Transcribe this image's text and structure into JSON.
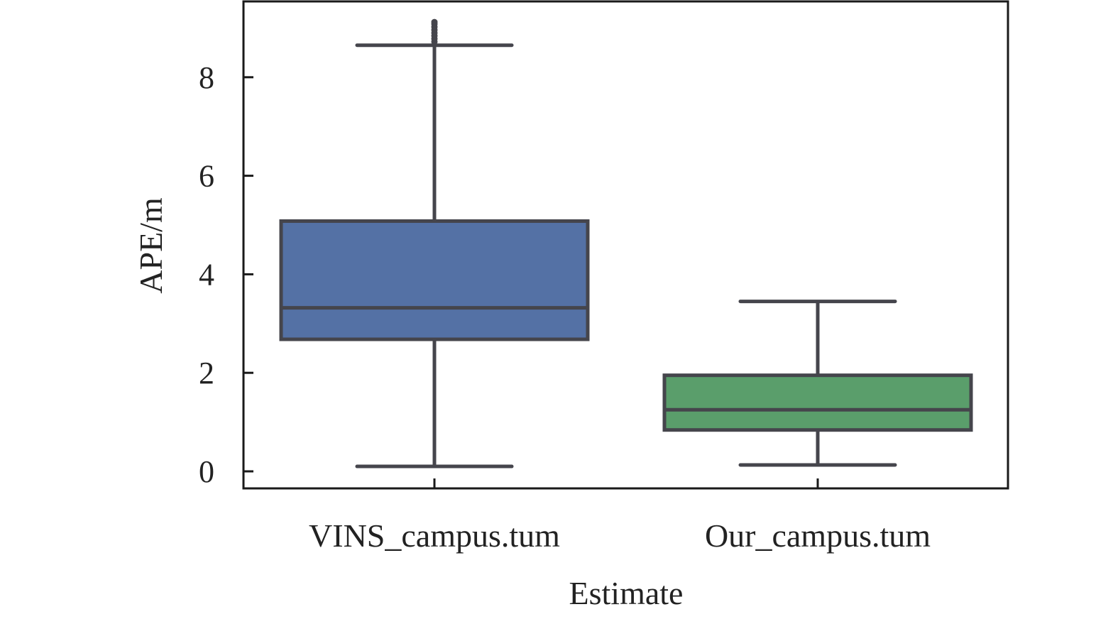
{
  "chart_data": {
    "type": "box",
    "title": "",
    "xlabel": "Estimate",
    "ylabel": "APE/m",
    "ylim": [
      -0.35,
      9.5
    ],
    "yticks": [
      0,
      2,
      4,
      6,
      8
    ],
    "grid": false,
    "categories": [
      "VINS_campus.tum",
      "Our_campus.tum"
    ],
    "boxes": [
      {
        "category": "VINS_campus.tum",
        "whisker_low": 0.1,
        "q1": 2.68,
        "median": 3.32,
        "q3": 5.08,
        "whisker_high": 8.65,
        "outliers": [
          8.72,
          8.78,
          8.84,
          8.9,
          8.96,
          9.02,
          9.08,
          9.12
        ],
        "color": "#5471a5"
      },
      {
        "category": "Our_campus.tum",
        "whisker_low": 0.13,
        "q1": 0.84,
        "median": 1.25,
        "q3": 1.95,
        "whisker_high": 3.45,
        "outliers": [],
        "color": "#5a9e6b"
      }
    ],
    "line_color": "#45454c"
  }
}
